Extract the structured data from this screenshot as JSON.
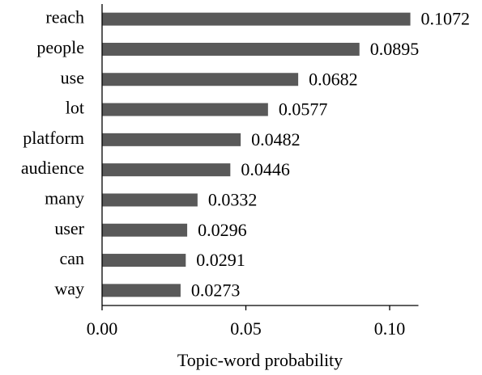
{
  "chart_data": {
    "type": "barh",
    "x_label": "Topic-word probability",
    "categories": [
      "reach",
      "people",
      "use",
      "lot",
      "platform",
      "audience",
      "many",
      "user",
      "can",
      "way"
    ],
    "values": [
      0.1072,
      0.0895,
      0.0682,
      0.0577,
      0.0482,
      0.0446,
      0.0332,
      0.0296,
      0.0291,
      0.0273
    ],
    "color": "#595959",
    "xlim": [
      0,
      0.11
    ],
    "xticks": [
      {
        "value": 0,
        "label": "0.00"
      },
      {
        "value": 0.05,
        "label": "0.05"
      },
      {
        "value": 0.1,
        "label": "0.10"
      }
    ]
  }
}
